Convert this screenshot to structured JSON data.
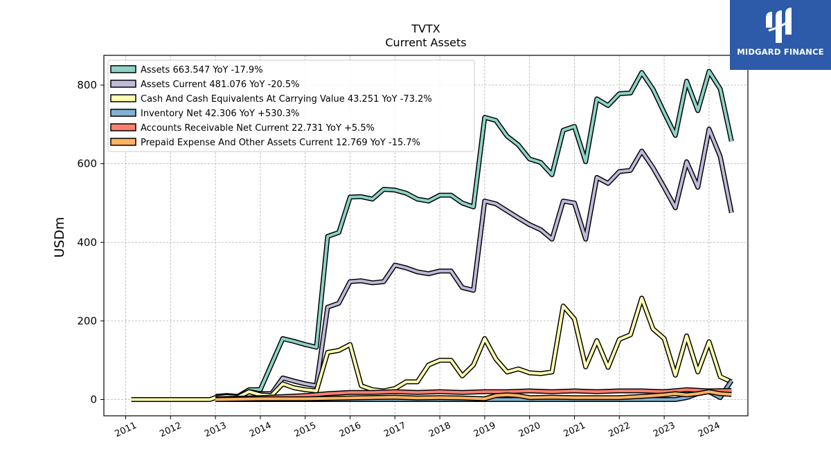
{
  "logo": {
    "name": "MIDGARD FINANCE",
    "color": "#2d5aa9"
  },
  "chart_data": {
    "type": "line",
    "title": "TVTX",
    "subtitle": "Current  Assets",
    "ylabel": "USDm",
    "xlabel": "",
    "xlim": [
      2010.5,
      2024.9
    ],
    "ylim": [
      -40,
      875
    ],
    "yticks": [
      0,
      200,
      400,
      600,
      800
    ],
    "xticks": [
      "2011",
      "2012",
      "2013",
      "2014",
      "2015",
      "2016",
      "2017",
      "2018",
      "2019",
      "2020",
      "2021",
      "2022",
      "2023",
      "2024"
    ],
    "grid": true,
    "legend_position": "top-left",
    "series": [
      {
        "name": "Assets",
        "legend": "Assets  663.547 YoY -17.9%",
        "color": "#8dd3c7",
        "points": [
          [
            2013.0,
            8
          ],
          [
            2013.25,
            10
          ],
          [
            2013.5,
            8
          ],
          [
            2013.75,
            25
          ],
          [
            2014.0,
            25
          ],
          [
            2014.25,
            90
          ],
          [
            2014.5,
            155
          ],
          [
            2014.75,
            148
          ],
          [
            2015.0,
            140
          ],
          [
            2015.25,
            133
          ],
          [
            2015.5,
            415
          ],
          [
            2015.75,
            425
          ],
          [
            2016.0,
            515
          ],
          [
            2016.25,
            516
          ],
          [
            2016.5,
            510
          ],
          [
            2016.75,
            535
          ],
          [
            2017.0,
            533
          ],
          [
            2017.25,
            525
          ],
          [
            2017.5,
            510
          ],
          [
            2017.75,
            505
          ],
          [
            2018.0,
            520
          ],
          [
            2018.25,
            520
          ],
          [
            2018.5,
            500
          ],
          [
            2018.75,
            490
          ],
          [
            2019.0,
            718
          ],
          [
            2019.25,
            710
          ],
          [
            2019.5,
            670
          ],
          [
            2019.75,
            648
          ],
          [
            2020.0,
            612
          ],
          [
            2020.25,
            603
          ],
          [
            2020.5,
            572
          ],
          [
            2020.75,
            685
          ],
          [
            2021.0,
            695
          ],
          [
            2021.25,
            605
          ],
          [
            2021.5,
            765
          ],
          [
            2021.75,
            748
          ],
          [
            2022.0,
            778
          ],
          [
            2022.25,
            780
          ],
          [
            2022.5,
            832
          ],
          [
            2022.75,
            790
          ],
          [
            2023.0,
            730
          ],
          [
            2023.25,
            672
          ],
          [
            2023.5,
            810
          ],
          [
            2023.75,
            735
          ],
          [
            2024.0,
            835
          ],
          [
            2024.25,
            790
          ],
          [
            2024.5,
            657
          ]
        ]
      },
      {
        "name": "Assets Current",
        "legend": "Assets Current  481.076 YoY -20.5%",
        "color": "#bebada",
        "points": [
          [
            2013.0,
            8
          ],
          [
            2013.25,
            10
          ],
          [
            2013.5,
            8
          ],
          [
            2013.75,
            20
          ],
          [
            2014.0,
            15
          ],
          [
            2014.25,
            15
          ],
          [
            2014.5,
            55
          ],
          [
            2014.75,
            47
          ],
          [
            2015.0,
            40
          ],
          [
            2015.25,
            35
          ],
          [
            2015.5,
            235
          ],
          [
            2015.75,
            245
          ],
          [
            2016.0,
            300
          ],
          [
            2016.25,
            302
          ],
          [
            2016.5,
            297
          ],
          [
            2016.75,
            300
          ],
          [
            2017.0,
            342
          ],
          [
            2017.25,
            335
          ],
          [
            2017.5,
            325
          ],
          [
            2017.75,
            320
          ],
          [
            2018.0,
            327
          ],
          [
            2018.25,
            327
          ],
          [
            2018.5,
            285
          ],
          [
            2018.75,
            278
          ],
          [
            2019.0,
            505
          ],
          [
            2019.25,
            498
          ],
          [
            2019.5,
            480
          ],
          [
            2019.75,
            462
          ],
          [
            2020.0,
            445
          ],
          [
            2020.25,
            432
          ],
          [
            2020.5,
            408
          ],
          [
            2020.75,
            505
          ],
          [
            2021.0,
            500
          ],
          [
            2021.25,
            408
          ],
          [
            2021.5,
            565
          ],
          [
            2021.75,
            550
          ],
          [
            2022.0,
            580
          ],
          [
            2022.25,
            583
          ],
          [
            2022.5,
            632
          ],
          [
            2022.75,
            590
          ],
          [
            2023.0,
            540
          ],
          [
            2023.25,
            488
          ],
          [
            2023.5,
            605
          ],
          [
            2023.75,
            540
          ],
          [
            2024.0,
            688
          ],
          [
            2024.25,
            618
          ],
          [
            2024.5,
            475
          ]
        ]
      },
      {
        "name": "Cash And Cash Equivalents At Carrying Value",
        "legend": "Cash And Cash Equivalents At Carrying Value  43.251 YoY -73.2%",
        "color": "#ffffb3",
        "points": [
          [
            2011.125,
            0
          ],
          [
            2012.875,
            0
          ],
          [
            2013.0,
            5
          ],
          [
            2013.25,
            8
          ],
          [
            2013.5,
            6
          ],
          [
            2013.75,
            20
          ],
          [
            2014.0,
            12
          ],
          [
            2014.25,
            10
          ],
          [
            2014.5,
            40
          ],
          [
            2014.75,
            30
          ],
          [
            2015.0,
            25
          ],
          [
            2015.25,
            22
          ],
          [
            2015.5,
            120
          ],
          [
            2015.75,
            125
          ],
          [
            2016.0,
            140
          ],
          [
            2016.25,
            35
          ],
          [
            2016.5,
            25
          ],
          [
            2016.75,
            22
          ],
          [
            2017.0,
            28
          ],
          [
            2017.25,
            45
          ],
          [
            2017.5,
            45
          ],
          [
            2017.75,
            88
          ],
          [
            2018.0,
            100
          ],
          [
            2018.25,
            100
          ],
          [
            2018.5,
            60
          ],
          [
            2018.75,
            88
          ],
          [
            2019.0,
            155
          ],
          [
            2019.25,
            103
          ],
          [
            2019.5,
            70
          ],
          [
            2019.75,
            78
          ],
          [
            2020.0,
            68
          ],
          [
            2020.25,
            66
          ],
          [
            2020.5,
            70
          ],
          [
            2020.75,
            238
          ],
          [
            2021.0,
            205
          ],
          [
            2021.25,
            83
          ],
          [
            2021.5,
            150
          ],
          [
            2021.75,
            82
          ],
          [
            2022.0,
            153
          ],
          [
            2022.25,
            165
          ],
          [
            2022.5,
            258
          ],
          [
            2022.75,
            180
          ],
          [
            2023.0,
            155
          ],
          [
            2023.25,
            62
          ],
          [
            2023.5,
            162
          ],
          [
            2023.75,
            70
          ],
          [
            2024.0,
            147
          ],
          [
            2024.25,
            58
          ],
          [
            2024.5,
            45
          ]
        ]
      },
      {
        "name": "Inventory Net",
        "legend": "Inventory Net  42.306 YoY +530.3%",
        "color": "#80b1d3",
        "points": [
          [
            2013.0,
            0
          ],
          [
            2014.0,
            0
          ],
          [
            2015.0,
            0
          ],
          [
            2016.0,
            0
          ],
          [
            2017.0,
            0
          ],
          [
            2018.0,
            0
          ],
          [
            2019.0,
            0
          ],
          [
            2020.0,
            0
          ],
          [
            2021.0,
            0
          ],
          [
            2022.0,
            0
          ],
          [
            2022.5,
            0
          ],
          [
            2023.0,
            0
          ],
          [
            2023.25,
            0
          ],
          [
            2023.5,
            5
          ],
          [
            2023.75,
            15
          ],
          [
            2024.0,
            20
          ],
          [
            2024.25,
            5
          ],
          [
            2024.5,
            48
          ]
        ]
      },
      {
        "name": "Accounts Receivable Net Current",
        "legend": "Accounts Receivable Net Current  22.731 YoY +5.5%",
        "color": "#fb8072",
        "points": [
          [
            2013.0,
            2
          ],
          [
            2014.0,
            5
          ],
          [
            2015.0,
            10
          ],
          [
            2015.5,
            15
          ],
          [
            2016.0,
            18
          ],
          [
            2016.5,
            18
          ],
          [
            2017.0,
            20
          ],
          [
            2017.5,
            18
          ],
          [
            2018.0,
            20
          ],
          [
            2018.5,
            18
          ],
          [
            2019.0,
            20
          ],
          [
            2019.5,
            20
          ],
          [
            2020.0,
            22
          ],
          [
            2020.5,
            20
          ],
          [
            2021.0,
            22
          ],
          [
            2021.5,
            20
          ],
          [
            2022.0,
            22
          ],
          [
            2022.5,
            22
          ],
          [
            2023.0,
            20
          ],
          [
            2023.5,
            25
          ],
          [
            2024.0,
            22
          ],
          [
            2024.5,
            23
          ]
        ]
      },
      {
        "name": "Prepaid Expense And Other Assets Current",
        "legend": "Prepaid Expense And Other Assets Current  12.769 YoY -15.7%",
        "color": "#fdb462",
        "points": [
          [
            2013.0,
            0
          ],
          [
            2014.0,
            2
          ],
          [
            2015.0,
            2
          ],
          [
            2016.0,
            4
          ],
          [
            2017.0,
            6
          ],
          [
            2017.5,
            4
          ],
          [
            2018.0,
            5
          ],
          [
            2018.5,
            4
          ],
          [
            2019.0,
            2
          ],
          [
            2019.25,
            10
          ],
          [
            2019.5,
            12
          ],
          [
            2019.75,
            10
          ],
          [
            2020.0,
            5
          ],
          [
            2020.5,
            6
          ],
          [
            2021.0,
            5
          ],
          [
            2021.5,
            5
          ],
          [
            2022.0,
            5
          ],
          [
            2022.5,
            8
          ],
          [
            2023.0,
            12
          ],
          [
            2023.25,
            15
          ],
          [
            2023.5,
            12
          ],
          [
            2023.75,
            15
          ],
          [
            2024.0,
            20
          ],
          [
            2024.25,
            15
          ],
          [
            2024.5,
            13
          ]
        ]
      }
    ]
  }
}
